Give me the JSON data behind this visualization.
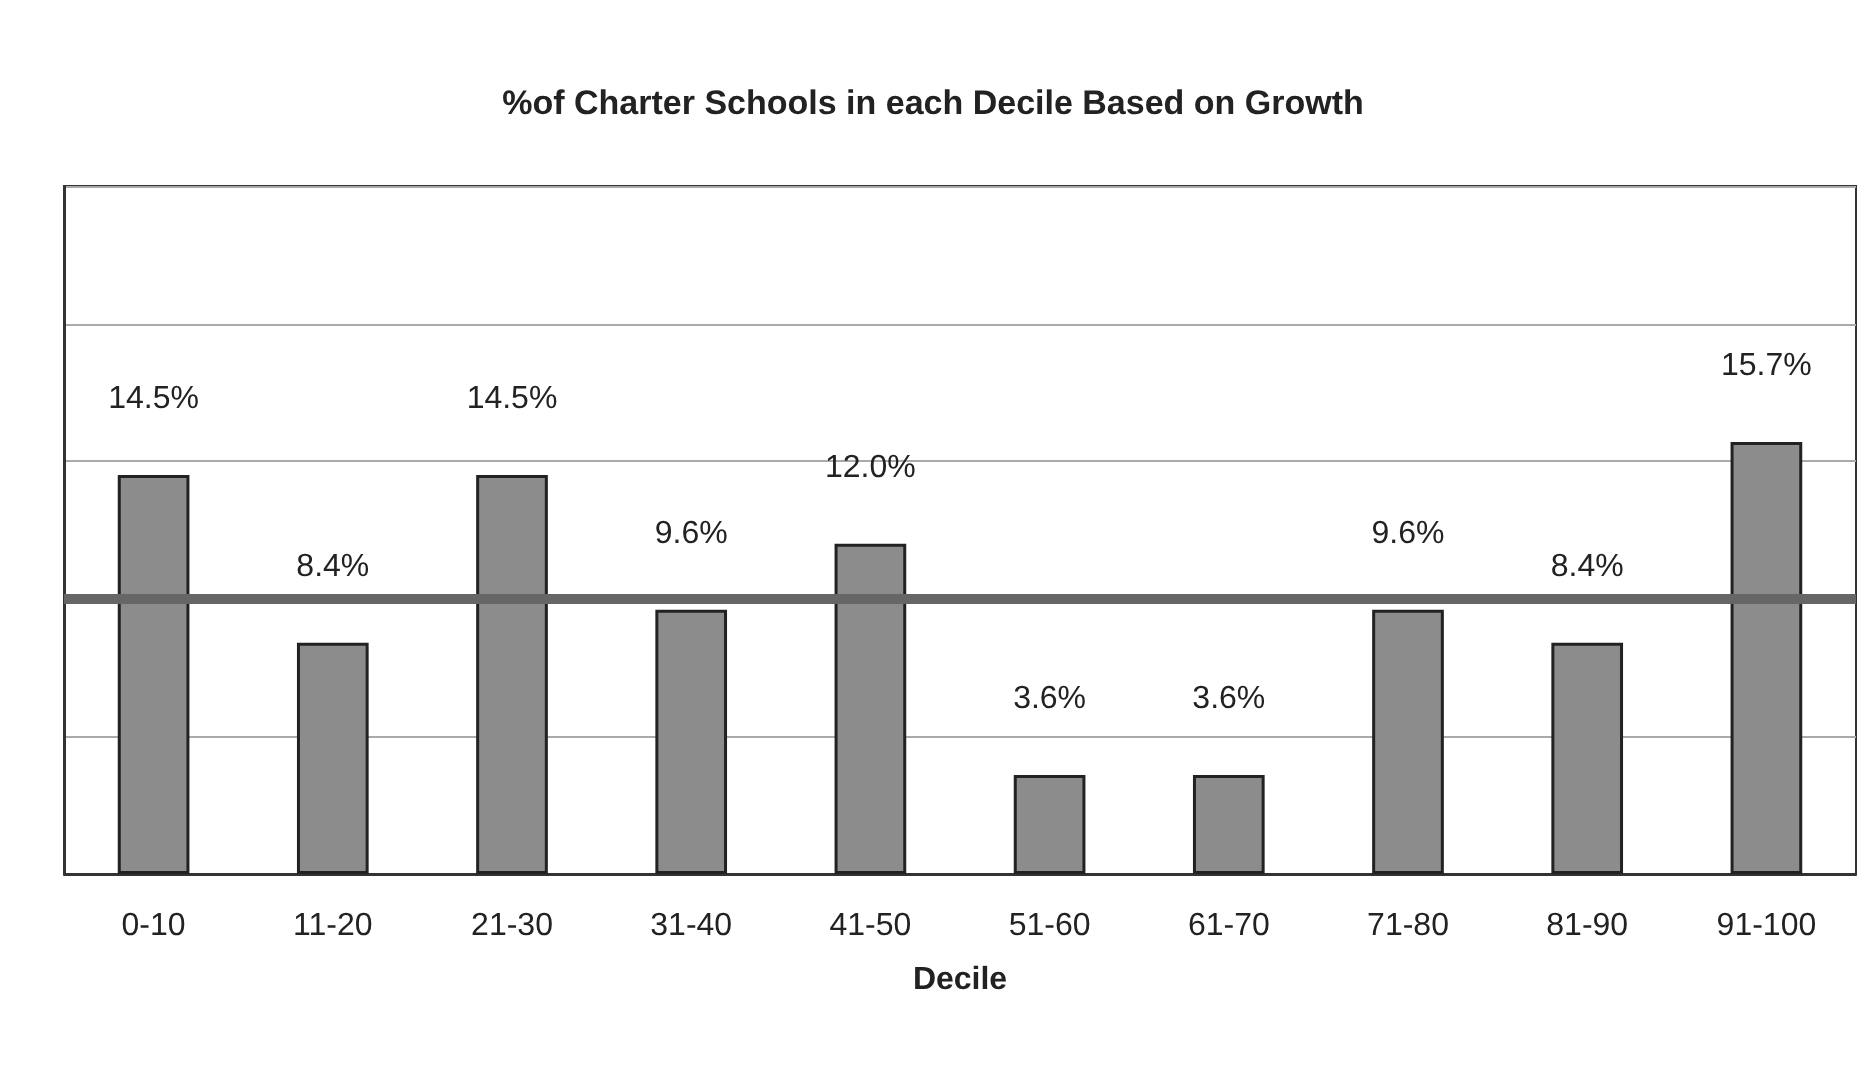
{
  "chart_data": {
    "type": "bar",
    "title": "%of Charter Schools in each Decile Based on Growth",
    "xlabel": "Decile",
    "categories": [
      "0-10",
      "11-20",
      "21-30",
      "31-40",
      "41-50",
      "51-60",
      "61-70",
      "71-80",
      "81-90",
      "91-100"
    ],
    "values": [
      14.5,
      8.4,
      14.5,
      9.6,
      12.0,
      3.6,
      3.6,
      9.6,
      8.4,
      15.7
    ],
    "value_labels": [
      "14.5%",
      "8.4%",
      "14.5%",
      "9.6%",
      "12.0%",
      "3.6%",
      "3.6%",
      "9.6%",
      "8.4%",
      "15.7%"
    ],
    "color": "#8c8c8c",
    "ylim": [
      0,
      25
    ],
    "yticks": [
      {
        "value": 0,
        "label": null
      },
      {
        "value": 5,
        "label": null
      },
      {
        "value": 10,
        "label": null
      },
      {
        "value": 15,
        "label": null
      },
      {
        "value": 20,
        "label": null
      },
      {
        "value": 25,
        "label": null
      }
    ],
    "tick_labels": "x",
    "grid": "y",
    "ref_lines": [
      {
        "axis": "y",
        "value": 10,
        "label": null,
        "color": "#666666"
      }
    ]
  }
}
